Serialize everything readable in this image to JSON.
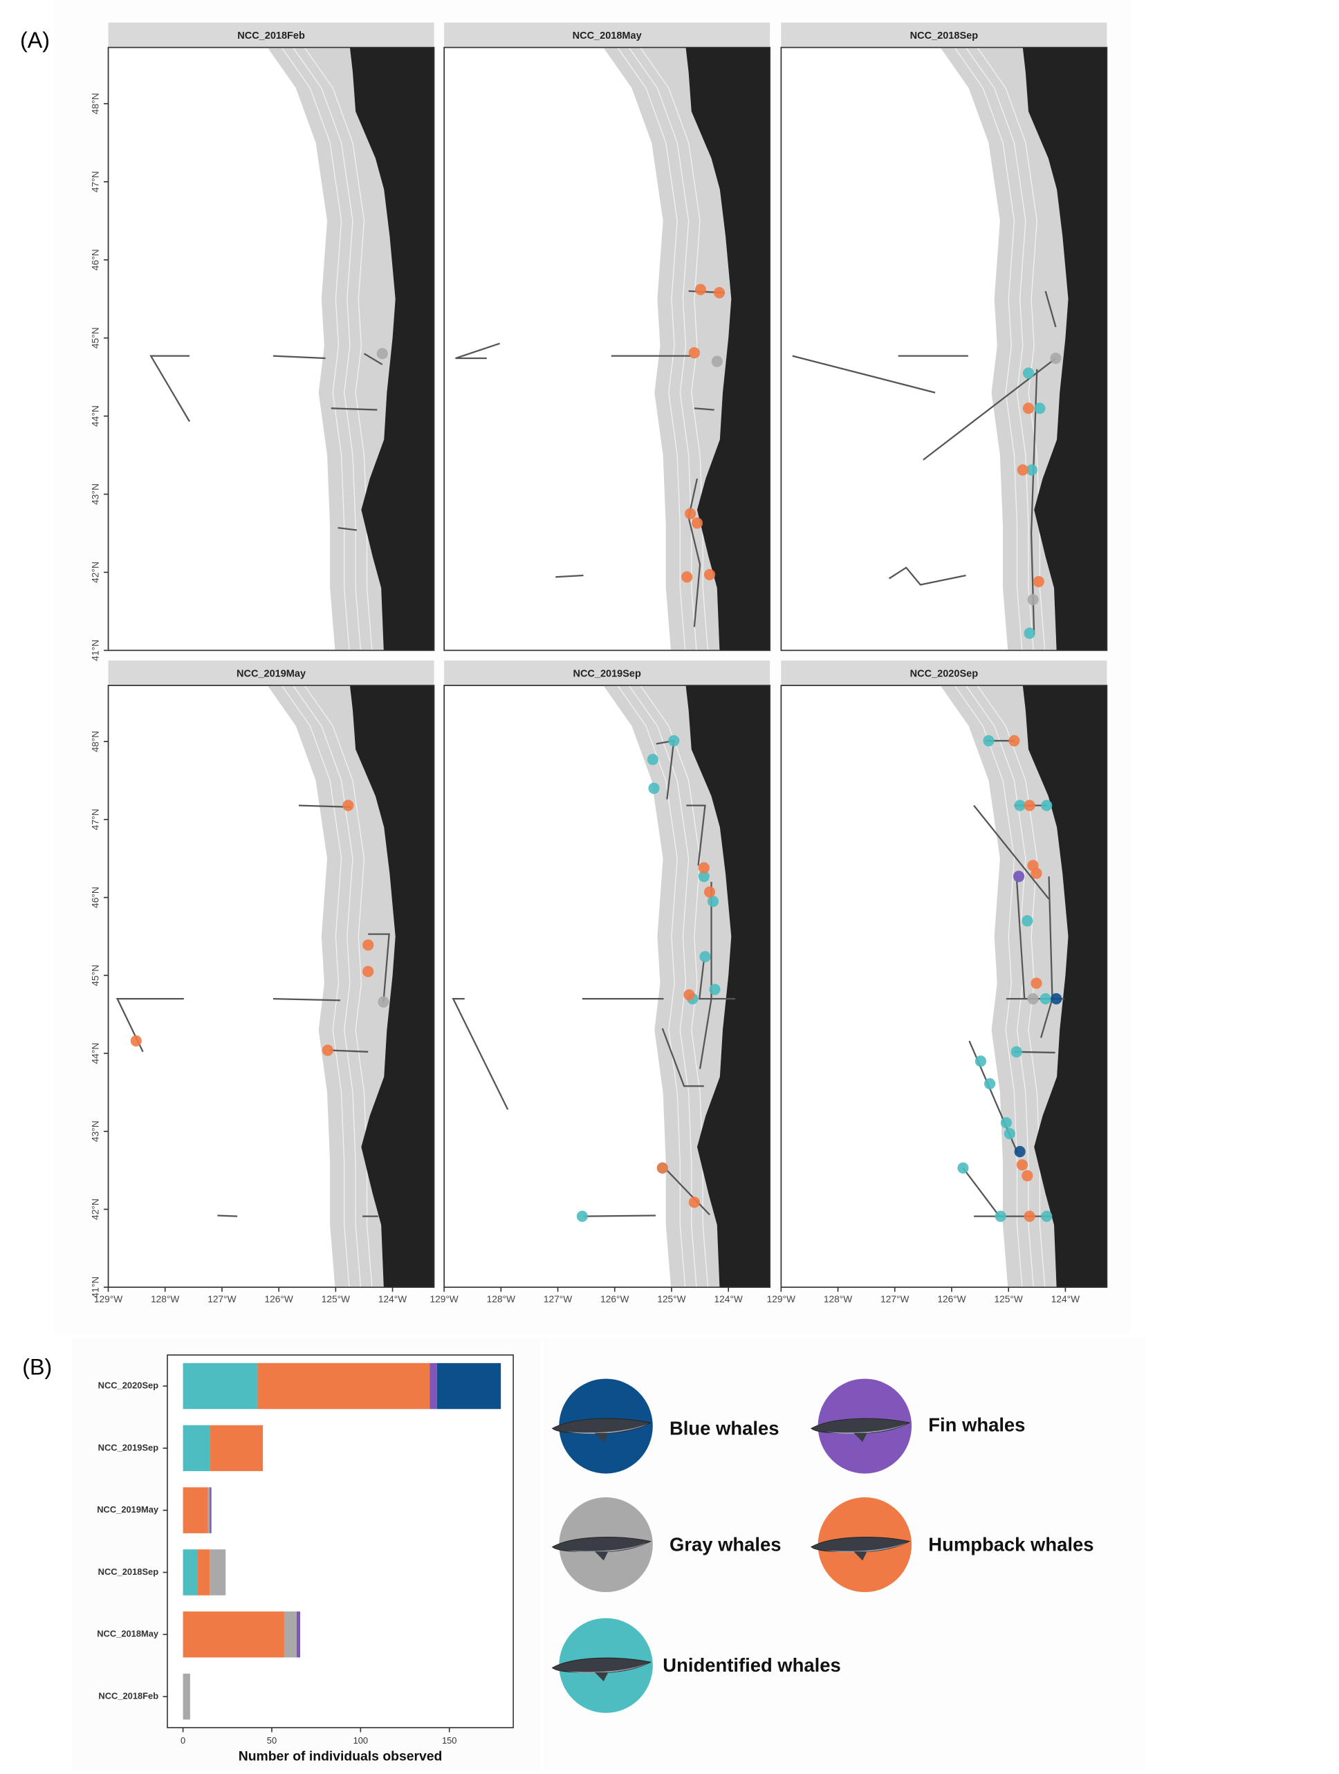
{
  "panel_labels": [
    "(A)",
    "(B)"
  ],
  "chart_data": [
    {
      "type": "map",
      "xlim": [
        -129,
        -123.27
      ],
      "ylim": [
        41,
        48.72
      ],
      "xticks": [
        {
          "value": -129,
          "label": "129°W"
        },
        {
          "value": -128,
          "label": "128°W"
        },
        {
          "value": -127,
          "label": "127°W"
        },
        {
          "value": -126,
          "label": "126°W"
        },
        {
          "value": -125,
          "label": "125°W"
        },
        {
          "value": -124,
          "label": "124°W"
        }
      ],
      "yticks": [
        {
          "value": 41,
          "label": "41°N"
        },
        {
          "value": 42,
          "label": "42°N"
        },
        {
          "value": 43,
          "label": "43°N"
        },
        {
          "value": 44,
          "label": "44°N"
        },
        {
          "value": 45,
          "label": "45°N"
        },
        {
          "value": 46,
          "label": "46°N"
        },
        {
          "value": 47,
          "label": "47°N"
        },
        {
          "value": 48,
          "label": "48°N"
        }
      ],
      "facets": [
        {
          "title": "NCC_2018Feb",
          "tracks": [
            {
              "lon": [
                -127.57,
                -128.25,
                -127.57
              ],
              "lat": [
                44.77,
                44.77,
                43.93
              ]
            },
            {
              "lon": [
                -126.1,
                -125.18
              ],
              "lat": [
                44.77,
                44.74
              ]
            },
            {
              "lon": [
                -125.08,
                -124.27
              ],
              "lat": [
                44.1,
                44.08
              ]
            },
            {
              "lon": [
                -124.96,
                -124.63
              ],
              "lat": [
                42.57,
                42.54
              ]
            },
            {
              "lon": [
                -124.5,
                -124.18
              ],
              "lat": [
                44.8,
                44.66
              ]
            }
          ],
          "sightings": [
            {
              "name": "Gray whales",
              "lon": [
                -124.18
              ],
              "lat": [
                44.8
              ]
            }
          ]
        },
        {
          "title": "NCC_2018May",
          "tracks": [
            {
              "lon": [
                -128.02,
                -128.8,
                -128.25
              ],
              "lat": [
                44.93,
                44.74,
                44.74
              ]
            },
            {
              "lon": [
                -126.06,
                -124.65
              ],
              "lat": [
                44.77,
                44.77
              ]
            },
            {
              "lon": [
                -124.6,
                -124.25
              ],
              "lat": [
                44.1,
                44.08
              ]
            },
            {
              "lon": [
                -127.04,
                -126.55
              ],
              "lat": [
                41.94,
                41.96
              ]
            },
            {
              "lon": [
                -124.55,
                -124.7,
                -124.5,
                -124.6
              ],
              "lat": [
                43.2,
                42.7,
                42.1,
                41.3
              ]
            },
            {
              "lon": [
                -124.7,
                -124.07
              ],
              "lat": [
                45.6,
                45.58
              ]
            }
          ],
          "sightings": [
            {
              "name": "Humpback whales",
              "lon": [
                -124.49,
                -124.16,
                -124.6,
                -124.67,
                -124.55,
                -124.73,
                -124.33
              ],
              "lat": [
                45.62,
                45.58,
                44.81,
                42.75,
                42.63,
                41.94,
                41.97
              ]
            },
            {
              "name": "Gray whales",
              "lon": [
                -124.2
              ],
              "lat": [
                44.7
              ]
            }
          ]
        },
        {
          "title": "NCC_2018Sep",
          "tracks": [
            {
              "lon": [
                -128.8,
                -126.29
              ],
              "lat": [
                44.77,
                44.3
              ]
            },
            {
              "lon": [
                -126.94,
                -125.71
              ],
              "lat": [
                44.77,
                44.77
              ]
            },
            {
              "lon": [
                -126.5,
                -124.17
              ],
              "lat": [
                43.44,
                44.74
              ]
            },
            {
              "lon": [
                -127.1,
                -126.8,
                -126.55,
                -125.75
              ],
              "lat": [
                41.92,
                42.06,
                41.84,
                41.96
              ]
            },
            {
              "lon": [
                -124.35,
                -124.17
              ],
              "lat": [
                45.6,
                45.14
              ]
            },
            {
              "lon": [
                -124.5,
                -124.6,
                -124.55
              ],
              "lat": [
                44.6,
                42.5,
                41.2
              ]
            }
          ],
          "sightings": [
            {
              "name": "Unidentified whales",
              "lon": [
                -124.65,
                -124.45,
                -124.59,
                -124.63
              ],
              "lat": [
                44.55,
                44.1,
                43.31,
                41.22
              ]
            },
            {
              "name": "Humpback whales",
              "lon": [
                -124.65,
                -124.75,
                -124.47
              ],
              "lat": [
                44.1,
                43.31,
                41.88
              ]
            },
            {
              "name": "Gray whales",
              "lon": [
                -124.17,
                -124.57
              ],
              "lat": [
                44.74,
                41.65
              ]
            }
          ]
        },
        {
          "title": "NCC_2019May",
          "tracks": [
            {
              "lon": [
                -127.67,
                -128.84,
                -128.39
              ],
              "lat": [
                44.7,
                44.7,
                44.02
              ]
            },
            {
              "lon": [
                -126.1,
                -124.92
              ],
              "lat": [
                44.7,
                44.68
              ]
            },
            {
              "lon": [
                -125.65,
                -124.73
              ],
              "lat": [
                47.18,
                47.16
              ]
            },
            {
              "lon": [
                -125.1,
                -124.43
              ],
              "lat": [
                44.04,
                44.02
              ]
            },
            {
              "lon": [
                -124.43,
                -124.06,
                -124.16
              ],
              "lat": [
                45.53,
                45.53,
                44.66
              ]
            },
            {
              "lon": [
                -127.08,
                -126.73
              ],
              "lat": [
                41.92,
                41.91
              ]
            },
            {
              "lon": [
                -124.53,
                -124.25
              ],
              "lat": [
                41.91,
                41.91
              ]
            }
          ],
          "sightings": [
            {
              "name": "Humpback whales",
              "lon": [
                -124.78,
                -124.43,
                -124.43,
                -125.14,
                -128.51
              ],
              "lat": [
                47.18,
                45.39,
                45.05,
                44.04,
                44.16
              ]
            },
            {
              "name": "Gray whales",
              "lon": [
                -124.16
              ],
              "lat": [
                44.66
              ]
            }
          ]
        },
        {
          "title": "NCC_2019Sep",
          "tracks": [
            {
              "lon": [
                -128.64,
                -128.84,
                -127.88
              ],
              "lat": [
                44.7,
                44.7,
                43.28
              ]
            },
            {
              "lon": [
                -126.57,
                -125.14
              ],
              "lat": [
                44.7,
                44.7
              ]
            },
            {
              "lon": [
                -126.55,
                -125.28
              ],
              "lat": [
                41.91,
                41.92
              ]
            },
            {
              "lon": [
                -124.74,
                -124.41,
                -124.53
              ],
              "lat": [
                47.18,
                47.18,
                46.41
              ]
            },
            {
              "lon": [
                -125.27,
                -124.96,
                -125.08
              ],
              "lat": [
                47.97,
                48.01,
                47.26
              ]
            },
            {
              "lon": [
                -125.16,
                -124.78,
                -124.43
              ],
              "lat": [
                44.32,
                43.58,
                43.58
              ]
            },
            {
              "lon": [
                -125.08,
                -124.33
              ],
              "lat": [
                42.5,
                41.93
              ]
            },
            {
              "lon": [
                -124.43,
                -124.51,
                -123.88
              ],
              "lat": [
                45.2,
                44.7,
                44.7
              ]
            },
            {
              "lon": [
                -124.3,
                -124.3,
                -124.5
              ],
              "lat": [
                46.2,
                44.7,
                43.8
              ]
            }
          ],
          "sightings": [
            {
              "name": "Unidentified whales",
              "lon": [
                -124.96,
                -125.33,
                -125.31,
                -124.41,
                -124.63,
                -124.24,
                -125.16,
                -126.57,
                -124.43,
                -124.27
              ],
              "lat": [
                48.01,
                47.77,
                47.4,
                45.24,
                44.7,
                44.82,
                42.53,
                41.91,
                46.27,
                45.95
              ]
            },
            {
              "name": "Humpback whales",
              "lon": [
                -124.43,
                -124.33,
                -124.69,
                -124.6,
                -125.16
              ],
              "lat": [
                46.38,
                46.07,
                44.75,
                42.09,
                42.53
              ]
            }
          ]
        },
        {
          "title": "NCC_2020Sep",
          "tracks": [
            {
              "lon": [
                -125.61,
                -124.29
              ],
              "lat": [
                47.18,
                45.98
              ]
            },
            {
              "lon": [
                -124.86,
                -124.72
              ],
              "lat": [
                46.27,
                44.7
              ]
            },
            {
              "lon": [
                -125.69,
                -124.84
              ],
              "lat": [
                44.16,
                42.72
              ]
            },
            {
              "lon": [
                -125.8,
                -125.16
              ],
              "lat": [
                42.53,
                41.91
              ]
            },
            {
              "lon": [
                -125.61,
                -124.25
              ],
              "lat": [
                41.91,
                41.91
              ]
            },
            {
              "lon": [
                -124.9,
                -124.18
              ],
              "lat": [
                44.02,
                44.01
              ]
            },
            {
              "lon": [
                -125.04,
                -124.02
              ],
              "lat": [
                44.7,
                44.7
              ]
            },
            {
              "lon": [
                -124.29,
                -124.23,
                -124.43
              ],
              "lat": [
                46.27,
                44.7,
                44.2
              ]
            },
            {
              "lon": [
                -125.4,
                -124.9
              ],
              "lat": [
                48.01,
                48.01
              ]
            },
            {
              "lon": [
                -124.9,
                -124.33
              ],
              "lat": [
                47.18,
                47.18
              ]
            }
          ],
          "sightings": [
            {
              "name": "Unidentified whales",
              "lon": [
                -125.35,
                -124.8,
                -124.33,
                -124.82,
                -124.67,
                -124.35,
                -124.86,
                -125.49,
                -125.33,
                -125.04,
                -124.98,
                -125.8,
                -125.14,
                -124.33
              ],
              "lat": [
                48.01,
                47.18,
                47.18,
                46.27,
                45.7,
                44.7,
                44.02,
                43.9,
                43.61,
                43.11,
                42.97,
                42.53,
                41.91,
                41.91
              ]
            },
            {
              "name": "Humpback whales",
              "lon": [
                -124.9,
                -124.63,
                -124.57,
                -124.51,
                -124.51,
                -124.76,
                -124.67,
                -124.63
              ],
              "lat": [
                48.01,
                47.18,
                46.41,
                46.31,
                44.9,
                42.57,
                42.43,
                41.91
              ]
            },
            {
              "name": "Fin whales",
              "lon": [
                -124.82
              ],
              "lat": [
                46.27
              ]
            },
            {
              "name": "Gray whales",
              "lon": [
                -124.57
              ],
              "lat": [
                44.7
              ]
            },
            {
              "name": "Blue whales",
              "lon": [
                -124.16,
                -124.8
              ],
              "lat": [
                44.7,
                42.74
              ]
            }
          ]
        }
      ]
    },
    {
      "type": "bar",
      "orientation": "horizontal",
      "categories": [
        "NCC_2018Feb",
        "NCC_2018May",
        "NCC_2018Sep",
        "NCC_2019May",
        "NCC_2019Sep",
        "NCC_2020Sep"
      ],
      "series": [
        {
          "name": "Unidentified whales",
          "color": "#4dbdc1",
          "values": [
            0,
            0,
            8,
            0,
            15,
            42
          ]
        },
        {
          "name": "Humpback whales",
          "color": "#ef7a45",
          "values": [
            0,
            57,
            7,
            14,
            30,
            97
          ]
        },
        {
          "name": "Gray whales",
          "color": "#a9a9a9",
          "values": [
            4,
            7,
            9,
            1,
            0,
            0
          ]
        },
        {
          "name": "Fin whales",
          "color": "#8156bb",
          "values": [
            0,
            2,
            0,
            1,
            0,
            4
          ]
        },
        {
          "name": "Blue whales",
          "color": "#0d4f8b",
          "values": [
            0,
            0,
            0,
            0,
            0,
            36
          ]
        }
      ],
      "xlim": [
        -8.8,
        186
      ],
      "xticks": [
        0,
        50,
        100,
        150
      ],
      "xlabel": "Number of individuals observed",
      "grid": false
    }
  ]
}
